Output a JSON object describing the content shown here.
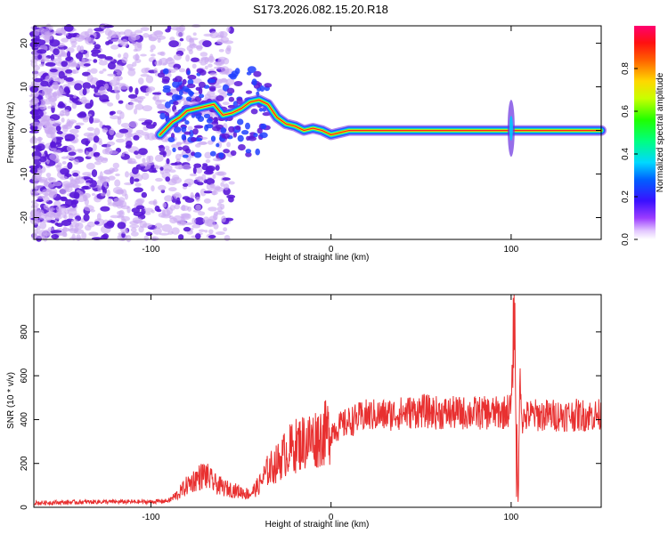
{
  "title": "S173.2026.082.15.20.R18",
  "colors": {
    "snr_line": "#e83030",
    "ridge_core": "#ff2020",
    "ridge_edge": "#00c8ff",
    "noise_dark": "#5a18d8",
    "noise_light": "#c9a8f2"
  },
  "chart_data": [
    {
      "type": "heatmap",
      "xlabel": "Height of straight line (km)",
      "ylabel": "Frequency (Hz)",
      "xlim": [
        -165,
        150
      ],
      "ylim": [
        -25,
        24
      ],
      "x_ticks": [
        -100,
        0,
        100
      ],
      "y_ticks": [
        -20,
        -10,
        0,
        10,
        20
      ],
      "colorbar": {
        "label": "Normalized spectral amplitude",
        "range": [
          0,
          1
        ],
        "ticks": [
          0.0,
          0.2,
          0.4,
          0.6,
          0.8
        ],
        "tick_labels": [
          "0.0",
          "0.2",
          "0.4",
          "0.6",
          "0.8"
        ],
        "colormap": "rainbow (purple-blue-cyan-green-yellow-red)"
      },
      "ridge": {
        "x": [
          -95,
          -88,
          -84,
          -80,
          -75,
          -70,
          -65,
          -60,
          -55,
          -50,
          -45,
          -40,
          -35,
          -30,
          -25,
          -20,
          -15,
          -10,
          -5,
          0,
          5,
          10,
          20,
          40,
          60,
          80,
          95,
          100,
          105,
          120,
          140,
          150
        ],
        "y": [
          -1,
          2,
          3,
          4.5,
          5,
          5.5,
          6,
          3.5,
          4,
          5,
          6.5,
          7,
          6,
          3,
          1.5,
          1,
          0,
          0.5,
          0,
          -1,
          -0.5,
          0,
          0,
          0,
          0,
          0,
          0,
          0,
          0,
          0,
          0,
          0
        ]
      },
      "annotations": [
        "vertical spread near x=100, frequency range -5 to 6 Hz"
      ]
    },
    {
      "type": "line",
      "xlabel": "Height of straight line (km)",
      "ylabel": "SNR (10 * v/v)",
      "xlim": [
        -165,
        150
      ],
      "ylim": [
        0,
        970
      ],
      "x_ticks": [
        -100,
        0,
        100
      ],
      "y_ticks": [
        0,
        200,
        400,
        600,
        800
      ],
      "series": [
        {
          "x": [
            -165,
            -130,
            -100,
            -90,
            -85,
            -80,
            -75,
            -70,
            -65,
            -60,
            -55,
            -50,
            -45,
            -40,
            -35,
            -30,
            -25,
            -20,
            -15,
            -10,
            -5,
            0,
            5,
            10,
            20,
            30,
            40,
            50,
            60,
            70,
            80,
            90,
            95,
            100,
            102,
            103,
            104,
            105,
            106,
            110,
            120,
            130,
            140,
            150
          ],
          "y": [
            20,
            25,
            25,
            30,
            60,
            100,
            130,
            150,
            110,
            90,
            80,
            70,
            60,
            100,
            170,
            200,
            250,
            280,
            300,
            310,
            330,
            350,
            370,
            390,
            420,
            420,
            430,
            440,
            430,
            430,
            430,
            430,
            430,
            450,
            860,
            120,
            60,
            650,
            400,
            420,
            420,
            420,
            420,
            420
          ]
        }
      ]
    }
  ]
}
